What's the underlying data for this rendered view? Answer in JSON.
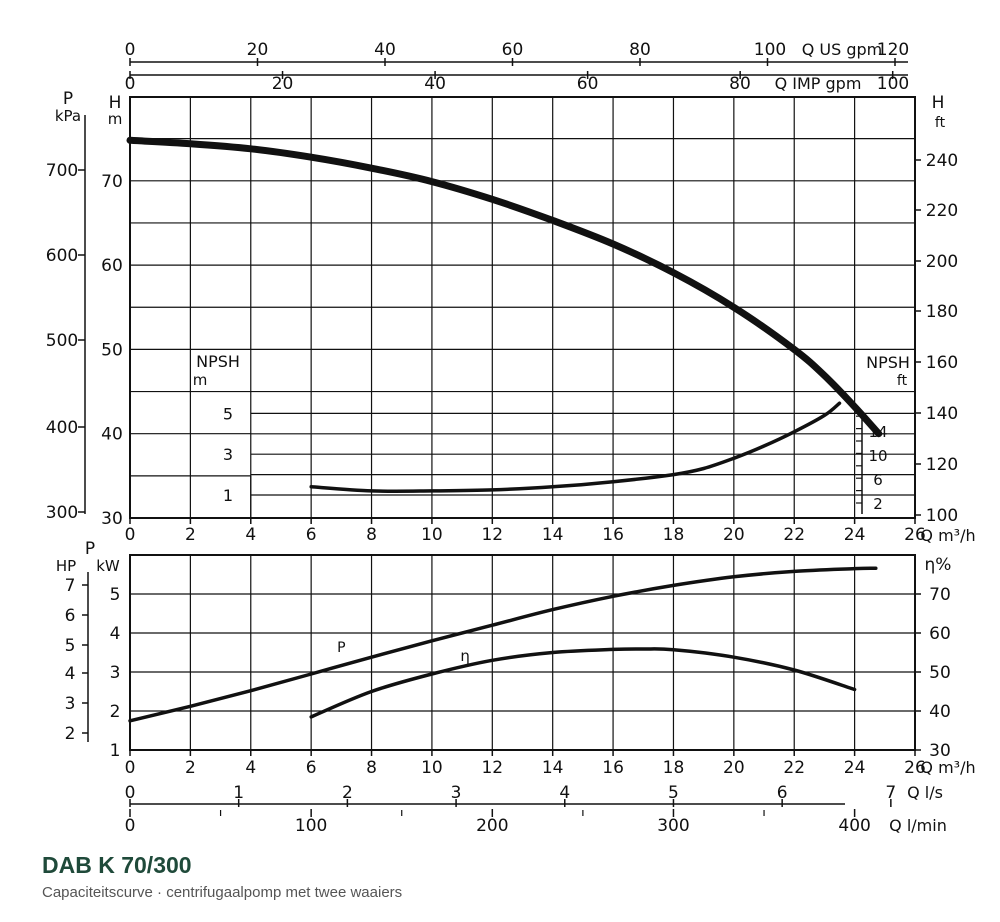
{
  "caption": {
    "title": "DAB K 70/300",
    "subtitle": "Capaciteitscurve · centrifugaalpomp met twee waaiers"
  },
  "colors": {
    "ink": "#111111",
    "title": "#1f4a3a",
    "subtitle": "#555555",
    "background": "#ffffff"
  },
  "chart_data": [
    {
      "type": "line",
      "name": "head-npsh",
      "x_axis": {
        "label": "Q m³/h",
        "range": [
          0,
          26
        ],
        "ticks": [
          0,
          2,
          4,
          6,
          8,
          10,
          12,
          14,
          16,
          18,
          20,
          22,
          24,
          26
        ]
      },
      "top_axes": [
        {
          "label": "Q US gpm",
          "range": [
            0,
            120
          ],
          "ticks": [
            0,
            20,
            40,
            60,
            80,
            100,
            120
          ]
        },
        {
          "label": "Q IMP gpm",
          "range": [
            0,
            100
          ],
          "ticks": [
            0,
            20,
            40,
            60,
            80,
            100
          ]
        }
      ],
      "y_axes": {
        "pressure": {
          "label": "P",
          "unit": "kPa",
          "ticks": [
            300,
            400,
            500,
            600,
            700
          ]
        },
        "head_m": {
          "label": "H",
          "unit": "m",
          "range": [
            30,
            76
          ],
          "ticks": [
            30,
            40,
            50,
            60,
            70
          ]
        },
        "head_ft": {
          "label": "H",
          "unit": "ft",
          "ticks": [
            100,
            120,
            140,
            160,
            180,
            200,
            220,
            240
          ]
        },
        "npsh_m": {
          "label": "NPSH",
          "unit": "m",
          "ticks": [
            1,
            3,
            5
          ]
        },
        "npsh_ft": {
          "label": "NPSH",
          "unit": "ft",
          "ticks": [
            2,
            6,
            10,
            14
          ]
        }
      },
      "grid": true,
      "series": [
        {
          "key": "H",
          "x": [
            0,
            2,
            4,
            6,
            8,
            10,
            12,
            14,
            16,
            18,
            20,
            22,
            23,
            24,
            24.8
          ],
          "y": [
            74.8,
            74.4,
            73.8,
            72.8,
            71.5,
            69.9,
            67.8,
            65.3,
            62.5,
            59.1,
            55.0,
            50.0,
            46.9,
            43.2,
            40.0
          ]
        },
        {
          "key": "NPSH",
          "x": [
            6,
            8,
            10,
            12,
            14,
            16,
            18,
            19,
            20,
            21,
            22,
            23,
            23.5
          ],
          "y": [
            1.4,
            1.2,
            1.2,
            1.25,
            1.4,
            1.65,
            2.0,
            2.3,
            2.8,
            3.4,
            4.1,
            4.9,
            5.5
          ]
        }
      ]
    },
    {
      "type": "line",
      "name": "power-efficiency",
      "x_axes": [
        {
          "label": "Q m³/h",
          "range": [
            0,
            26
          ],
          "ticks": [
            0,
            2,
            4,
            6,
            8,
            10,
            12,
            14,
            16,
            18,
            20,
            22,
            24,
            26
          ]
        },
        {
          "label": "Q l/s",
          "range": [
            0,
            7
          ],
          "ticks": [
            0,
            1,
            2,
            3,
            4,
            5,
            6,
            7
          ]
        },
        {
          "label": "Q l/min",
          "range": [
            0,
            400
          ],
          "ticks": [
            0,
            100,
            200,
            300,
            400
          ]
        }
      ],
      "y_axes": {
        "hp": {
          "label": "HP",
          "ticks": [
            2,
            3,
            4,
            5,
            6,
            7
          ]
        },
        "kw": {
          "label": "P",
          "unit": "kW",
          "range": [
            1,
            6
          ],
          "ticks": [
            1,
            2,
            3,
            4,
            5
          ]
        },
        "eta": {
          "label": "η%",
          "range": [
            30,
            80
          ],
          "ticks": [
            30,
            40,
            50,
            60,
            70
          ]
        }
      },
      "grid": true,
      "series": [
        {
          "key": "P",
          "x": [
            0,
            2,
            4,
            6,
            8,
            10,
            12,
            14,
            16,
            18,
            20,
            22,
            24,
            24.7
          ],
          "y": [
            1.75,
            2.12,
            2.52,
            2.95,
            3.38,
            3.8,
            4.2,
            4.6,
            4.94,
            5.22,
            5.44,
            5.58,
            5.65,
            5.66
          ]
        },
        {
          "key": "η",
          "x": [
            6,
            8,
            10,
            12,
            14,
            16,
            17,
            18,
            20,
            22,
            24
          ],
          "y": [
            38.5,
            45,
            49.5,
            53,
            55,
            55.8,
            55.9,
            55.7,
            53.8,
            50.5,
            45.5
          ]
        }
      ]
    }
  ]
}
